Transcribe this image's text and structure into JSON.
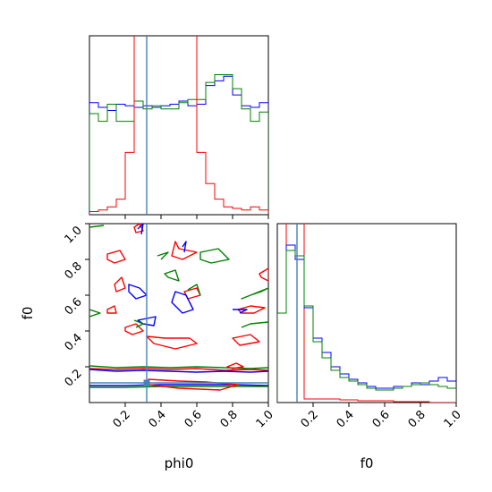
{
  "chart_data": {
    "type": "corner",
    "title": "",
    "variables": [
      "phi0",
      "f0"
    ],
    "truth": {
      "phi0": 0.32,
      "f0": 0.11
    },
    "series_colors": {
      "blue": "#0000ff",
      "green": "#008000",
      "red": "#ff0000",
      "truth": "#4682b4"
    },
    "panels": [
      {
        "id": "phi0-hist",
        "type": "histogram",
        "x_range": [
          0,
          1
        ],
        "bin_edges": [
          0,
          0.05,
          0.1,
          0.15,
          0.2,
          0.25,
          0.3,
          0.35,
          0.4,
          0.45,
          0.5,
          0.55,
          0.6,
          0.65,
          0.7,
          0.75,
          0.8,
          0.85,
          0.9,
          0.95,
          1.0
        ],
        "series": [
          {
            "color": "blue",
            "values": [
              0.72,
              0.69,
              0.67,
              0.71,
              0.7,
              0.69,
              0.7,
              0.69,
              0.7,
              0.71,
              0.73,
              0.7,
              0.71,
              0.83,
              0.86,
              0.89,
              0.77,
              0.7,
              0.69,
              0.72
            ]
          },
          {
            "color": "green",
            "values": [
              0.65,
              0.6,
              0.71,
              0.6,
              0.6,
              0.73,
              0.68,
              0.7,
              0.68,
              0.68,
              0.72,
              0.74,
              0.74,
              0.85,
              0.9,
              0.9,
              0.81,
              0.68,
              0.6,
              0.66
            ]
          },
          {
            "color": "red",
            "values": [
              0.02,
              0.03,
              0.05,
              0.1,
              0.4,
              1.2,
              1.2,
              1.2,
              1.2,
              1.2,
              1.2,
              1.2,
              0.4,
              0.2,
              0.1,
              0.05,
              0.04,
              0.03,
              0.05,
              0.03
            ]
          }
        ]
      },
      {
        "id": "phi0-f0-contour",
        "type": "contour",
        "x_var": "phi0",
        "y_var": "f0",
        "x_range": [
          0,
          1
        ],
        "y_range": [
          0,
          1
        ],
        "x_ticks": [
          "0.2",
          "0.4",
          "0.6",
          "0.8",
          "1.0"
        ],
        "y_ticks": [
          "0.2",
          "0.4",
          "0.6",
          "0.8",
          "1.0"
        ],
        "contours": [
          {
            "color": "red",
            "points": [
              [
                0.0,
                0.19
              ],
              [
                0.15,
                0.185
              ],
              [
                0.3,
                0.19
              ],
              [
                0.45,
                0.185
              ],
              [
                0.6,
                0.19
              ],
              [
                0.75,
                0.18
              ],
              [
                0.9,
                0.185
              ],
              [
                1.0,
                0.18
              ]
            ]
          },
          {
            "color": "green",
            "points": [
              [
                0.0,
                0.205
              ],
              [
                0.15,
                0.195
              ],
              [
                0.3,
                0.2
              ],
              [
                0.45,
                0.195
              ],
              [
                0.6,
                0.2
              ],
              [
                0.75,
                0.195
              ],
              [
                0.9,
                0.19
              ],
              [
                1.0,
                0.195
              ]
            ]
          },
          {
            "color": "blue",
            "points": [
              [
                0.0,
                0.185
              ],
              [
                0.15,
                0.175
              ],
              [
                0.3,
                0.18
              ],
              [
                0.45,
                0.175
              ],
              [
                0.6,
                0.17
              ],
              [
                0.75,
                0.175
              ],
              [
                0.9,
                0.17
              ],
              [
                1.0,
                0.175
              ]
            ]
          },
          {
            "color": "blue",
            "points": [
              [
                0.0,
                0.095
              ],
              [
                0.2,
                0.095
              ],
              [
                0.4,
                0.1
              ],
              [
                0.6,
                0.1
              ],
              [
                0.8,
                0.1
              ],
              [
                1.0,
                0.095
              ]
            ]
          },
          {
            "color": "green",
            "points": [
              [
                0.0,
                0.085
              ],
              [
                0.2,
                0.085
              ],
              [
                0.4,
                0.09
              ],
              [
                0.6,
                0.09
              ],
              [
                0.8,
                0.09
              ],
              [
                1.0,
                0.09
              ]
            ]
          },
          {
            "color": "red",
            "points": [
              [
                0.33,
                0.13
              ],
              [
                0.5,
                0.12
              ],
              [
                0.65,
                0.115
              ],
              [
                0.83,
                0.1
              ],
              [
                0.73,
                0.07
              ],
              [
                0.5,
                0.08
              ],
              [
                0.33,
                0.1
              ]
            ]
          },
          {
            "color": "red",
            "points": [
              [
                0.1,
                0.83
              ],
              [
                0.17,
                0.85
              ],
              [
                0.2,
                0.8
              ],
              [
                0.14,
                0.78
              ],
              [
                0.1,
                0.8
              ]
            ]
          },
          {
            "color": "red",
            "points": [
              [
                0.48,
                0.9
              ],
              [
                0.5,
                0.86
              ],
              [
                0.6,
                0.84
              ],
              [
                0.52,
                0.8
              ],
              [
                0.46,
                0.82
              ]
            ]
          },
          {
            "color": "red",
            "points": [
              [
                0.32,
                0.37
              ],
              [
                0.36,
                0.33
              ],
              [
                0.48,
                0.3
              ],
              [
                0.6,
                0.33
              ],
              [
                0.56,
                0.36
              ],
              [
                0.42,
                0.36
              ]
            ]
          },
          {
            "color": "red",
            "points": [
              [
                0.2,
                0.42
              ],
              [
                0.26,
                0.44
              ],
              [
                0.3,
                0.4
              ],
              [
                0.24,
                0.38
              ],
              [
                0.2,
                0.4
              ]
            ]
          },
          {
            "color": "red",
            "points": [
              [
                0.14,
                0.66
              ],
              [
                0.18,
                0.7
              ],
              [
                0.2,
                0.64
              ],
              [
                0.15,
                0.62
              ],
              [
                0.14,
                0.66
              ]
            ]
          },
          {
            "color": "red",
            "points": [
              [
                0.53,
                0.62
              ],
              [
                0.6,
                0.64
              ],
              [
                0.62,
                0.6
              ],
              [
                0.55,
                0.58
              ],
              [
                0.53,
                0.62
              ]
            ]
          },
          {
            "color": "red",
            "points": [
              [
                0.83,
                0.52
              ],
              [
                0.9,
                0.54
              ],
              [
                0.98,
                0.53
              ],
              [
                0.92,
                0.5
              ],
              [
                0.85,
                0.5
              ]
            ]
          },
          {
            "color": "red",
            "points": [
              [
                0.8,
                0.36
              ],
              [
                0.9,
                0.38
              ],
              [
                0.95,
                0.34
              ],
              [
                0.84,
                0.32
              ],
              [
                0.8,
                0.36
              ]
            ]
          },
          {
            "color": "red",
            "points": [
              [
                0.1,
                0.52
              ],
              [
                0.14,
                0.54
              ],
              [
                0.15,
                0.5
              ],
              [
                0.1,
                0.5
              ]
            ]
          },
          {
            "color": "red",
            "points": [
              [
                0.77,
                0.2
              ],
              [
                0.82,
                0.22
              ],
              [
                0.86,
                0.2
              ],
              [
                0.8,
                0.19
              ]
            ]
          },
          {
            "color": "red",
            "points": [
              [
                0.25,
                0.98
              ],
              [
                0.28,
                1.0
              ],
              [
                0.3,
                0.96
              ],
              [
                0.26,
                0.95
              ]
            ]
          },
          {
            "color": "red",
            "points": [
              [
                0.95,
                0.72
              ],
              [
                1.0,
                0.75
              ],
              [
                1.0,
                0.68
              ],
              [
                0.96,
                0.7
              ]
            ]
          },
          {
            "color": "blue",
            "points": [
              [
                0.22,
                0.66
              ],
              [
                0.28,
                0.64
              ],
              [
                0.32,
                0.6
              ],
              [
                0.26,
                0.58
              ],
              [
                0.22,
                0.62
              ]
            ]
          },
          {
            "color": "blue",
            "points": [
              [
                0.48,
                0.62
              ],
              [
                0.54,
                0.6
              ],
              [
                0.58,
                0.52
              ],
              [
                0.52,
                0.5
              ],
              [
                0.46,
                0.56
              ]
            ]
          },
          {
            "color": "blue",
            "points": [
              [
                0.27,
                0.46
              ],
              [
                0.37,
                0.48
              ],
              [
                0.36,
                0.43
              ],
              [
                0.3,
                0.44
              ]
            ]
          },
          {
            "color": "blue",
            "points": [
              [
                0.52,
                0.87
              ],
              [
                0.54,
                0.9
              ],
              [
                0.53,
                0.84
              ]
            ]
          },
          {
            "color": "blue",
            "points": [
              [
                0.27,
                0.97
              ],
              [
                0.3,
                1.0
              ],
              [
                0.29,
                0.94
              ]
            ]
          },
          {
            "color": "blue",
            "points": [
              [
                0.8,
                0.52
              ],
              [
                0.88,
                0.52
              ],
              [
                0.84,
                0.5
              ]
            ]
          },
          {
            "color": "green",
            "points": [
              [
                0.38,
                0.82
              ],
              [
                0.44,
                0.84
              ],
              [
                0.4,
                0.8
              ]
            ]
          },
          {
            "color": "green",
            "points": [
              [
                0.62,
                0.84
              ],
              [
                0.72,
                0.86
              ],
              [
                0.78,
                0.8
              ],
              [
                0.68,
                0.78
              ],
              [
                0.62,
                0.8
              ]
            ]
          },
          {
            "color": "green",
            "points": [
              [
                0.42,
                0.72
              ],
              [
                0.48,
                0.74
              ],
              [
                0.5,
                0.68
              ],
              [
                0.44,
                0.7
              ]
            ]
          },
          {
            "color": "green",
            "points": [
              [
                0.55,
                0.63
              ],
              [
                0.6,
                0.66
              ],
              [
                0.62,
                0.6
              ]
            ]
          },
          {
            "color": "green",
            "points": [
              [
                0.0,
                0.52
              ],
              [
                0.06,
                0.5
              ],
              [
                0.0,
                0.48
              ]
            ]
          },
          {
            "color": "green",
            "points": [
              [
                0.25,
                0.46
              ],
              [
                0.3,
                0.44
              ],
              [
                0.26,
                0.42
              ]
            ]
          },
          {
            "color": "green",
            "points": [
              [
                0.85,
                0.58
              ],
              [
                0.9,
                0.6
              ],
              [
                0.96,
                0.62
              ],
              [
                1.0,
                0.64
              ]
            ]
          },
          {
            "color": "green",
            "points": [
              [
                0.85,
                0.42
              ],
              [
                0.9,
                0.44
              ],
              [
                1.0,
                0.45
              ]
            ]
          },
          {
            "color": "green",
            "points": [
              [
                0.0,
                0.98
              ],
              [
                0.08,
                0.99
              ]
            ]
          }
        ]
      },
      {
        "id": "f0-hist",
        "type": "histogram",
        "x_range": [
          0,
          1
        ],
        "x_ticks": [
          "0.2",
          "0.4",
          "0.6",
          "0.8",
          "1.0"
        ],
        "bin_edges": [
          0,
          0.05,
          0.1,
          0.15,
          0.2,
          0.25,
          0.3,
          0.35,
          0.4,
          0.45,
          0.5,
          0.55,
          0.6,
          0.65,
          0.7,
          0.75,
          0.8,
          0.85,
          0.9,
          0.95,
          1.0
        ],
        "series": [
          {
            "color": "red",
            "values": [
              0.5,
              1.2,
              1.2,
              0.02,
              0.02,
              0.02,
              0.02,
              0.015,
              0.015,
              0.01,
              0.01,
              0.01,
              0.01,
              0.005,
              0.005,
              0.005,
              0.005,
              0.0,
              0.0,
              0.0
            ]
          },
          {
            "color": "blue",
            "values": [
              0.5,
              0.88,
              0.8,
              0.53,
              0.36,
              0.28,
              0.2,
              0.16,
              0.13,
              0.11,
              0.09,
              0.08,
              0.08,
              0.09,
              0.09,
              0.11,
              0.1,
              0.12,
              0.14,
              0.12
            ]
          },
          {
            "color": "green",
            "values": [
              0.5,
              0.85,
              0.82,
              0.54,
              0.34,
              0.25,
              0.18,
              0.14,
              0.12,
              0.1,
              0.08,
              0.07,
              0.07,
              0.08,
              0.09,
              0.1,
              0.11,
              0.1,
              0.09,
              0.08
            ]
          }
        ]
      }
    ]
  }
}
